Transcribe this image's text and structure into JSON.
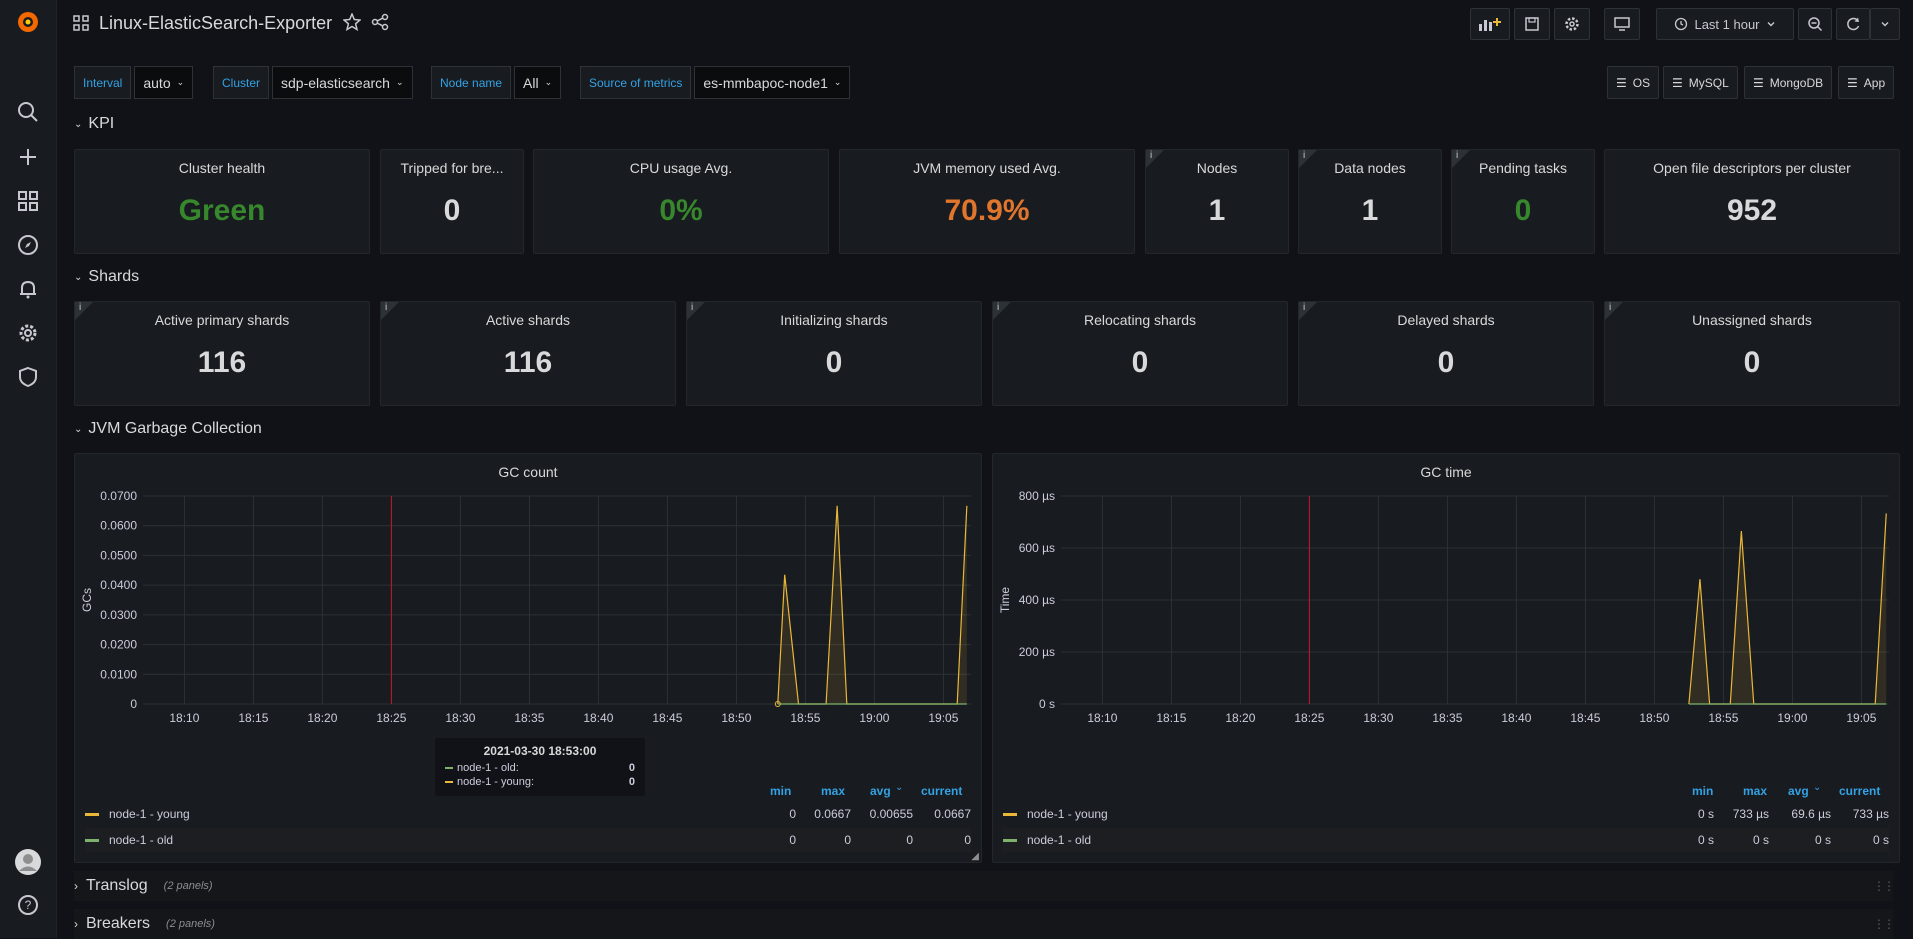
{
  "header": {
    "title": "Linux-ElasticSearch-Exporter",
    "time_range": "Last 1 hour"
  },
  "variables": [
    {
      "label": "Interval",
      "value": "auto"
    },
    {
      "label": "Cluster",
      "value": "sdp-elasticsearch"
    },
    {
      "label": "Node name",
      "value": "All"
    },
    {
      "label": "Source of metrics",
      "value": "es-mmbapoc-node1"
    }
  ],
  "links": [
    "OS",
    "MySQL",
    "MongoDB",
    "App"
  ],
  "rows": {
    "kpi": "KPI",
    "shards": "Shards",
    "jvm": "JVM Garbage Collection",
    "translog": "Translog",
    "translog_count": "(2 panels)",
    "breakers": "Breakers",
    "breakers_count": "(2 panels)"
  },
  "kpi": [
    {
      "title": "Cluster health",
      "value": "Green",
      "color": "#37872d"
    },
    {
      "title": "Tripped for bre...",
      "value": "0",
      "color": "#d8d9da"
    },
    {
      "title": "CPU usage Avg.",
      "value": "0%",
      "color": "#37872d"
    },
    {
      "title": "JVM memory used Avg.",
      "value": "70.9%",
      "color": "#e0752d"
    },
    {
      "title": "Nodes",
      "value": "1",
      "color": "#d8d9da"
    },
    {
      "title": "Data nodes",
      "value": "1",
      "color": "#d8d9da"
    },
    {
      "title": "Pending tasks",
      "value": "0",
      "color": "#37872d"
    },
    {
      "title": "Open file descriptors per cluster",
      "value": "952",
      "color": "#d8d9da"
    }
  ],
  "shards": [
    {
      "title": "Active primary shards",
      "value": "116"
    },
    {
      "title": "Active shards",
      "value": "116"
    },
    {
      "title": "Initializing shards",
      "value": "0"
    },
    {
      "title": "Relocating shards",
      "value": "0"
    },
    {
      "title": "Delayed shards",
      "value": "0"
    },
    {
      "title": "Unassigned shards",
      "value": "0"
    }
  ],
  "legend_headers": {
    "min": "min",
    "max": "max",
    "avg": "avg",
    "current": "current"
  },
  "gc_count": {
    "title": "GC count",
    "ylabel": "GCs",
    "legend": [
      {
        "name": "node-1 - young",
        "color": "#eab839",
        "min": "0",
        "max": "0.0667",
        "avg": "0.00655",
        "current": "0.0667"
      },
      {
        "name": "node-1 - old",
        "color": "#7eb26d",
        "min": "0",
        "max": "0",
        "avg": "0",
        "current": "0"
      }
    ],
    "tooltip": {
      "time": "2021-03-30 18:53:00",
      "rows": [
        {
          "name": "node-1 - old:",
          "value": "0",
          "color": "#7eb26d"
        },
        {
          "name": "node-1 - young:",
          "value": "0",
          "color": "#eab839"
        }
      ]
    }
  },
  "gc_time": {
    "title": "GC time",
    "ylabel": "Time",
    "legend": [
      {
        "name": "node-1 - young",
        "color": "#eab839",
        "min": "0 s",
        "max": "733 µs",
        "avg": "69.6 µs",
        "current": "733 µs"
      },
      {
        "name": "node-1 - old",
        "color": "#7eb26d",
        "min": "0 s",
        "max": "0 s",
        "avg": "0 s",
        "current": "0 s"
      }
    ]
  },
  "chart_data": [
    {
      "type": "line",
      "title": "GC count",
      "ylabel": "GCs",
      "ylim": [
        0,
        0.07
      ],
      "yticks": [
        "0",
        "0.0100",
        "0.0200",
        "0.0300",
        "0.0400",
        "0.0500",
        "0.0600",
        "0.0700"
      ],
      "yvals": [
        0,
        0.01,
        0.02,
        0.03,
        0.04,
        0.05,
        0.06,
        0.07
      ],
      "xticks": [
        "18:10",
        "18:15",
        "18:20",
        "18:25",
        "18:30",
        "18:35",
        "18:40",
        "18:45",
        "18:50",
        "18:55",
        "19:00",
        "19:05"
      ],
      "xrange_min": [
        7,
        67
      ],
      "xtick_min": [
        10,
        15,
        20,
        25,
        30,
        35,
        40,
        45,
        50,
        55,
        60,
        65
      ],
      "marker_min": 25,
      "series": [
        {
          "name": "node-1 - young",
          "color": "#eab839",
          "points": [
            [
              53,
              0
            ],
            [
              53.5,
              0.0435
            ],
            [
              54.5,
              0
            ],
            [
              56.5,
              0
            ],
            [
              57.3,
              0.0667
            ],
            [
              58,
              0
            ],
            [
              66,
              0
            ],
            [
              66.7,
              0.0667
            ]
          ]
        },
        {
          "name": "node-1 - old",
          "color": "#7eb26d",
          "points": [
            [
              53,
              0
            ],
            [
              66.7,
              0
            ]
          ]
        }
      ]
    },
    {
      "type": "line",
      "title": "GC time",
      "ylabel": "Time",
      "ylim": [
        0,
        800
      ],
      "yticks": [
        "0 s",
        "200 µs",
        "400 µs",
        "600 µs",
        "800 µs"
      ],
      "yvals": [
        0,
        200,
        400,
        600,
        800
      ],
      "xticks": [
        "18:10",
        "18:15",
        "18:20",
        "18:25",
        "18:30",
        "18:35",
        "18:40",
        "18:45",
        "18:50",
        "18:55",
        "19:00",
        "19:05"
      ],
      "xrange_min": [
        7,
        67
      ],
      "xtick_min": [
        10,
        15,
        20,
        25,
        30,
        35,
        40,
        45,
        50,
        55,
        60,
        65
      ],
      "marker_min": 25,
      "series": [
        {
          "name": "node-1 - young",
          "color": "#eab839",
          "points": [
            [
              52.5,
              0
            ],
            [
              53.3,
              480
            ],
            [
              54,
              0
            ],
            [
              55.5,
              0
            ],
            [
              56.3,
              665
            ],
            [
              57.2,
              0
            ],
            [
              66,
              0
            ],
            [
              66.8,
              733
            ]
          ]
        },
        {
          "name": "node-1 - old",
          "color": "#7eb26d",
          "points": [
            [
              52.5,
              0
            ],
            [
              66.8,
              0
            ]
          ]
        }
      ]
    }
  ]
}
